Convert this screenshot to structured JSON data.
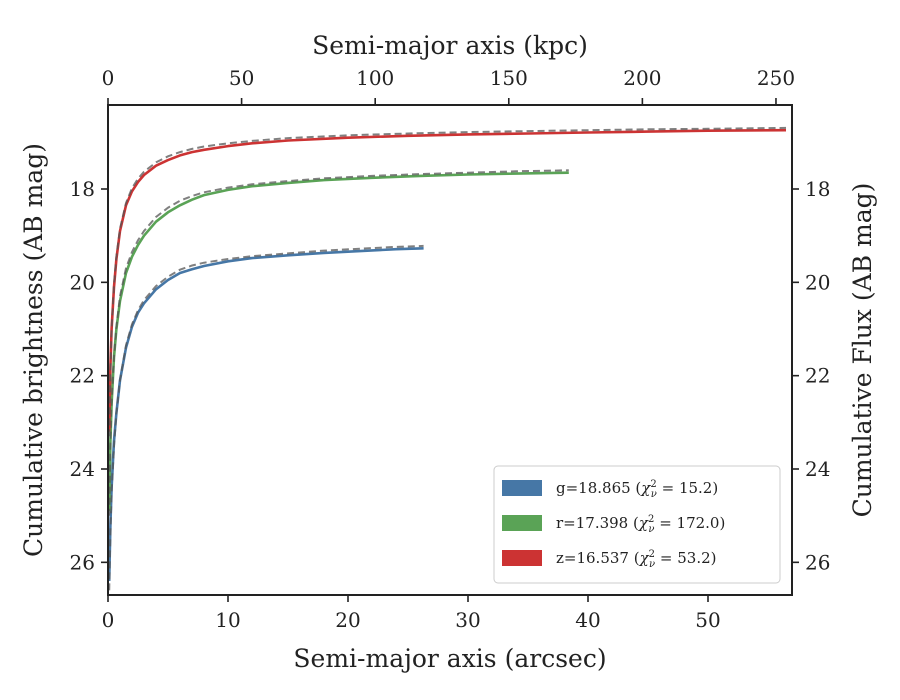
{
  "chart_data": {
    "type": "line",
    "xlabel": "Semi-major axis (arcsec)",
    "ylabel": "Cumulative brightness (AB mag)",
    "ylabel_right": "Cumulative Flux (AB mag)",
    "xlabel_top": "Semi-major axis (kpc)",
    "xlim": [
      0,
      57
    ],
    "ylim": [
      26.7,
      16.2
    ],
    "y_inverted": true,
    "xlim_top": [
      0,
      256
    ],
    "x_ticks": [
      0,
      10,
      20,
      30,
      40,
      50
    ],
    "y_ticks": [
      18,
      20,
      22,
      24,
      26
    ],
    "x_top_ticks": [
      0,
      50,
      100,
      150,
      200,
      250
    ],
    "legend_position": "lower-right",
    "grid": false,
    "series": [
      {
        "name": "g=18.865 (χ²_ν = 15.2)",
        "legend": {
          "band": "g",
          "mag": "18.865",
          "chi2": "15.2"
        },
        "color": "#4677a6",
        "x": [
          0.1,
          0.2,
          0.3,
          0.5,
          0.7,
          1.0,
          1.5,
          2.0,
          2.5,
          3.0,
          4.0,
          5.0,
          6.0,
          7.0,
          8.0,
          10.0,
          12.0,
          15.0,
          18.0,
          21.0,
          24.0,
          26.3
        ],
        "y": [
          26.4,
          25.2,
          24.4,
          23.4,
          22.8,
          22.1,
          21.4,
          20.95,
          20.65,
          20.45,
          20.15,
          19.95,
          19.8,
          19.72,
          19.65,
          19.55,
          19.48,
          19.42,
          19.37,
          19.33,
          19.29,
          19.27
        ],
        "model_y": [
          26.6,
          25.4,
          24.5,
          23.5,
          22.8,
          22.1,
          21.35,
          20.9,
          20.6,
          20.38,
          20.08,
          19.88,
          19.73,
          19.64,
          19.58,
          19.5,
          19.44,
          19.38,
          19.32,
          19.28,
          19.24,
          19.22
        ]
      },
      {
        "name": "r=17.398 (χ²_ν = 172.0)",
        "legend": {
          "band": "r",
          "mag": "17.398",
          "chi2": "172.0"
        },
        "color": "#5aa356",
        "x": [
          0.1,
          0.2,
          0.3,
          0.5,
          0.7,
          1.0,
          1.5,
          2.0,
          2.5,
          3.0,
          4.0,
          5.0,
          6.0,
          7.0,
          8.0,
          10.0,
          12.0,
          15.0,
          18.0,
          22.0,
          26.0,
          30.0,
          34.0,
          38.4
        ],
        "y": [
          24.9,
          23.4,
          22.6,
          21.6,
          21.0,
          20.4,
          19.8,
          19.45,
          19.2,
          19.0,
          18.7,
          18.5,
          18.35,
          18.23,
          18.13,
          18.02,
          17.94,
          17.87,
          17.81,
          17.76,
          17.72,
          17.69,
          17.67,
          17.65
        ],
        "model_y": [
          25.0,
          23.5,
          22.6,
          21.6,
          20.95,
          20.3,
          19.7,
          19.35,
          19.1,
          18.9,
          18.6,
          18.4,
          18.25,
          18.15,
          18.07,
          17.97,
          17.9,
          17.83,
          17.77,
          17.72,
          17.68,
          17.65,
          17.62,
          17.6
        ]
      },
      {
        "name": "z=16.537 (χ²_ν = 53.2)",
        "legend": {
          "band": "z",
          "mag": "16.537",
          "chi2": "53.2"
        },
        "color": "#cc3333",
        "x": [
          0.1,
          0.2,
          0.3,
          0.5,
          0.7,
          1.0,
          1.5,
          2.0,
          2.5,
          3.0,
          4.0,
          5.0,
          6.0,
          7.0,
          8.0,
          10.0,
          12.0,
          15.0,
          20.0,
          25.0,
          30.0,
          35.0,
          40.0,
          45.0,
          50.0,
          56.5
        ],
        "y": [
          23.2,
          21.8,
          21.0,
          20.1,
          19.5,
          18.9,
          18.35,
          18.05,
          17.85,
          17.7,
          17.5,
          17.38,
          17.28,
          17.21,
          17.16,
          17.08,
          17.02,
          16.96,
          16.9,
          16.86,
          16.83,
          16.81,
          16.79,
          16.77,
          16.75,
          16.74
        ],
        "model_y": [
          23.3,
          21.9,
          21.0,
          20.05,
          19.45,
          18.85,
          18.3,
          17.98,
          17.78,
          17.63,
          17.43,
          17.3,
          17.21,
          17.14,
          17.09,
          17.02,
          16.97,
          16.91,
          16.85,
          16.81,
          16.78,
          16.76,
          16.74,
          16.72,
          16.71,
          16.69
        ]
      }
    ]
  }
}
